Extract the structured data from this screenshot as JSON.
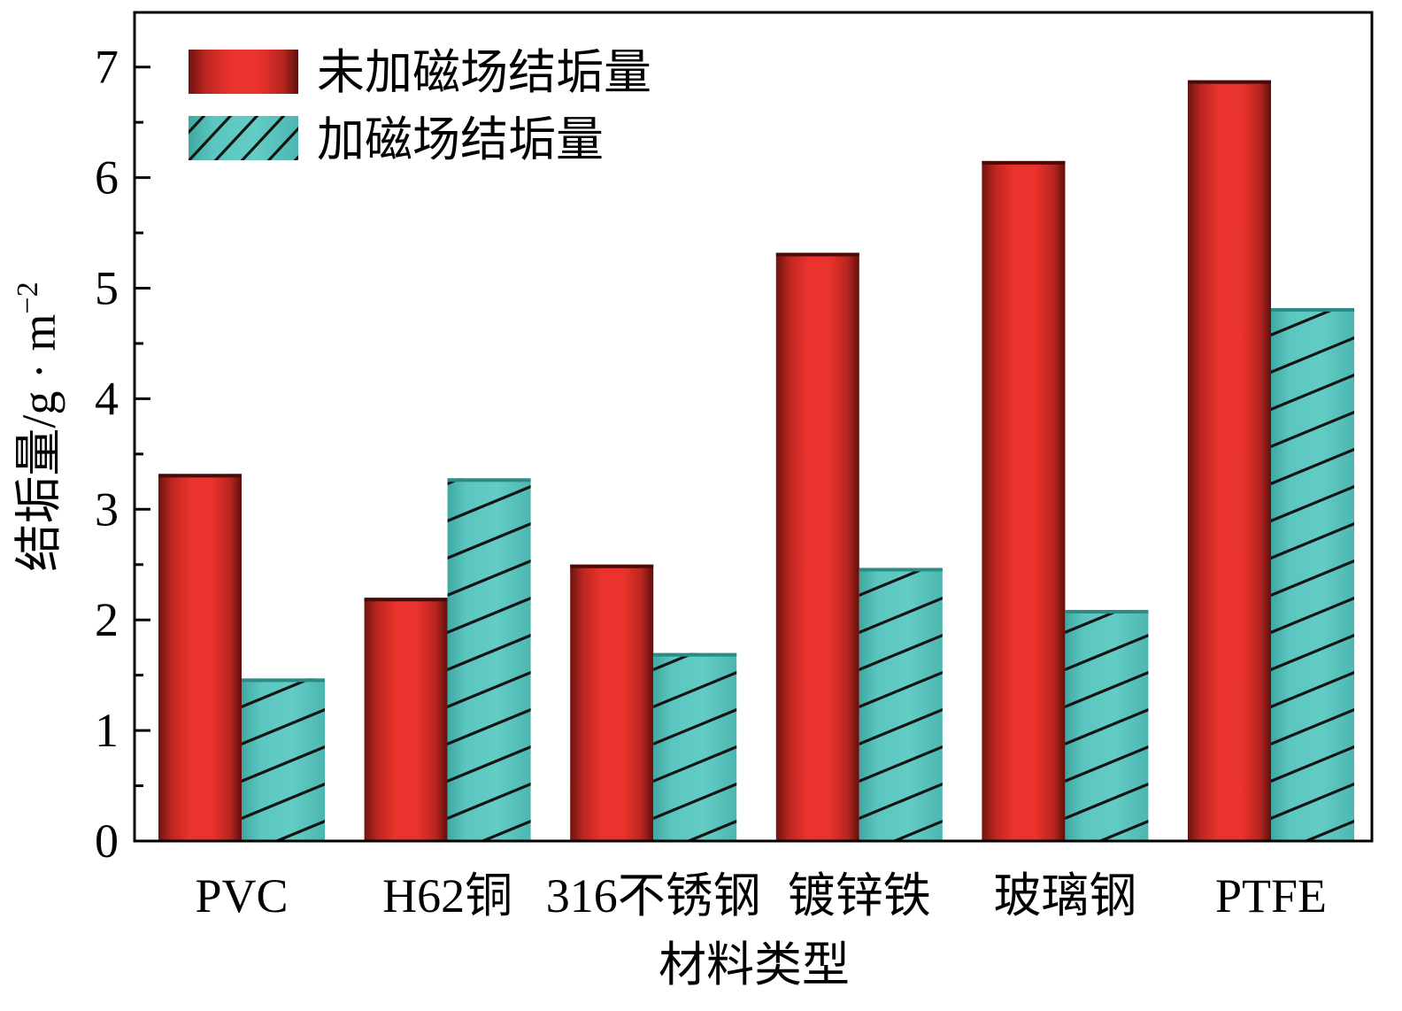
{
  "chart_data": {
    "type": "bar",
    "categories": [
      "PVC",
      "H62铜",
      "316不锈钢",
      "镀锌铁",
      "玻璃钢",
      "PTFE"
    ],
    "series": [
      {
        "name": "未加磁场结垢量",
        "values": [
          3.32,
          2.2,
          2.5,
          5.32,
          6.15,
          6.88
        ],
        "color": "#e8302a",
        "pattern": "none"
      },
      {
        "name": "加磁场结垢量",
        "values": [
          1.47,
          3.28,
          1.7,
          2.47,
          2.09,
          4.82
        ],
        "color": "#5dc8c0",
        "pattern": "diagonal-hatch"
      }
    ],
    "xlabel": "材料类型",
    "ylabel": "结垢量/g · m",
    "ylabel_superscript": "−2",
    "ylim": [
      0,
      7.5
    ],
    "yticks": [
      "0",
      "1",
      "2",
      "3",
      "4",
      "5",
      "6",
      "7"
    ],
    "grid": false,
    "legend_position": "top-left"
  }
}
